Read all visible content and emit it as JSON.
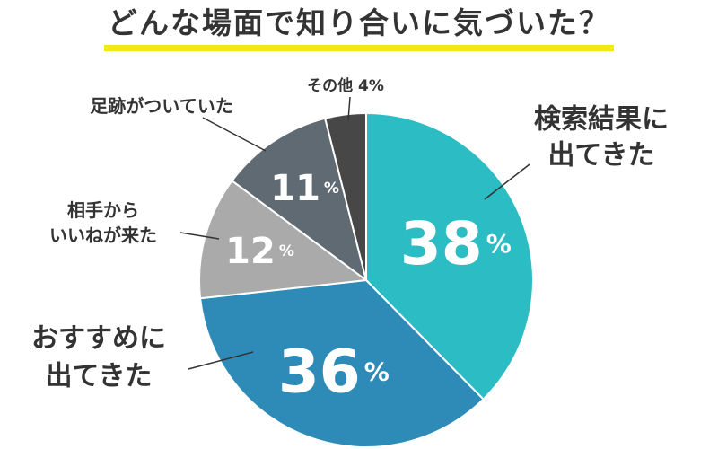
{
  "chart_data": {
    "type": "pie",
    "title": "どんな場面で知り合いに気づいた？",
    "start": "12 o'clock, clockwise",
    "slices": [
      {
        "label": "検索結果に\n出てきた",
        "value": 38,
        "value_label": "38",
        "color": "#2bbcc4"
      },
      {
        "label": "おすすめに\n出てきた",
        "value": 36,
        "value_label": "36",
        "color": "#2e8bb8"
      },
      {
        "label": "相手から\nいいねが来た",
        "value": 12,
        "value_label": "12",
        "color": "#aaaaaa"
      },
      {
        "label": "足跡がついていた",
        "value": 11,
        "value_label": "11",
        "color": "#5f6a73"
      },
      {
        "label": "その他 4%",
        "value": 4,
        "value_label": "",
        "color": "#474747"
      }
    ],
    "percent_symbol": "%",
    "legend": "none"
  },
  "colors": {
    "title_underline": "#f2e813",
    "text": "#333333",
    "leader_line": "#333333"
  }
}
